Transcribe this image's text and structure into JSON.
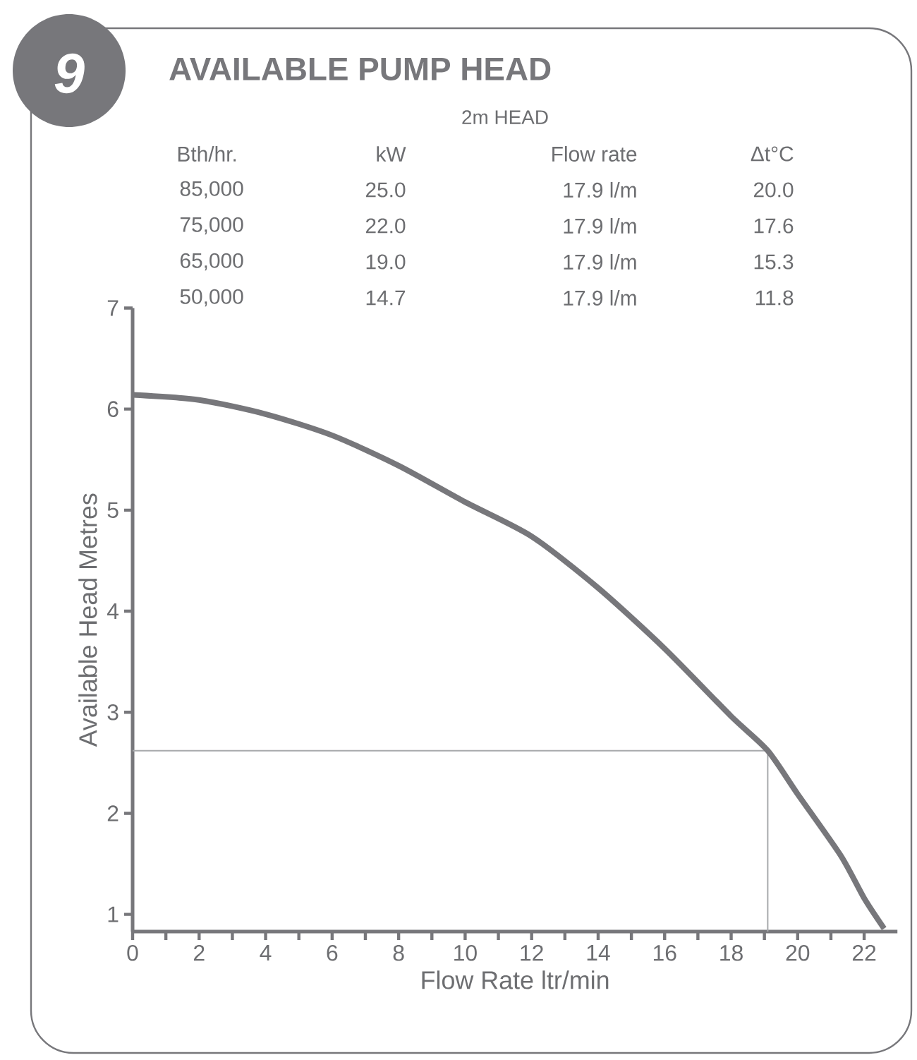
{
  "chart_data": {
    "type": "line",
    "title": "AVAILABLE PUMP HEAD",
    "xlabel": "Flow Rate ltr/min",
    "ylabel": "Available Head Metres",
    "annotations": [
      "9",
      "2m HEAD",
      "Bth/hr.",
      "kW",
      "Flow rate",
      "Δt°C",
      "85,000",
      "25.0",
      "17.9 l/m",
      "20.0",
      "75,000",
      "22.0",
      "17.9 l/m",
      "17.6",
      "65,000",
      "19.0",
      "17.9 l/m",
      "15.3",
      "50,000",
      "14.7",
      "17.9 l/m",
      "11.8"
    ],
    "series": [
      {
        "color": "#77777b",
        "x": [
          0,
          2,
          4,
          6,
          8,
          10,
          12,
          14,
          16,
          18,
          19.1,
          20,
          21.3,
          22,
          22.6
        ],
        "values": [
          6.14,
          6.09,
          5.95,
          5.74,
          5.44,
          5.08,
          4.74,
          4.23,
          3.63,
          2.96,
          2.62,
          2.19,
          1.58,
          1.16,
          0.86
        ]
      }
    ],
    "xlim": [
      0,
      23
    ],
    "ylim": [
      0.83,
      7
    ],
    "xticks": [
      0,
      {
        "value": 1,
        "label": null
      },
      2,
      {
        "value": 3,
        "label": null
      },
      4,
      {
        "value": 5,
        "label": null
      },
      6,
      {
        "value": 7,
        "label": null
      },
      8,
      {
        "value": 9,
        "label": null
      },
      10,
      {
        "value": 11,
        "label": null
      },
      12,
      {
        "value": 13,
        "label": null
      },
      14,
      {
        "value": 15,
        "label": null
      },
      16,
      {
        "value": 17,
        "label": null
      },
      18,
      {
        "value": 19,
        "label": null
      },
      20,
      {
        "value": 21,
        "label": null
      },
      22
    ],
    "yticks": [
      1,
      2,
      3,
      4,
      5,
      6,
      7
    ],
    "ref_lines": [
      {
        "axis": "y",
        "value": 2.62,
        "color": "#a7a9ac"
      },
      {
        "axis": "x",
        "value": 19.1,
        "color": "#a7a9ac"
      }
    ]
  }
}
